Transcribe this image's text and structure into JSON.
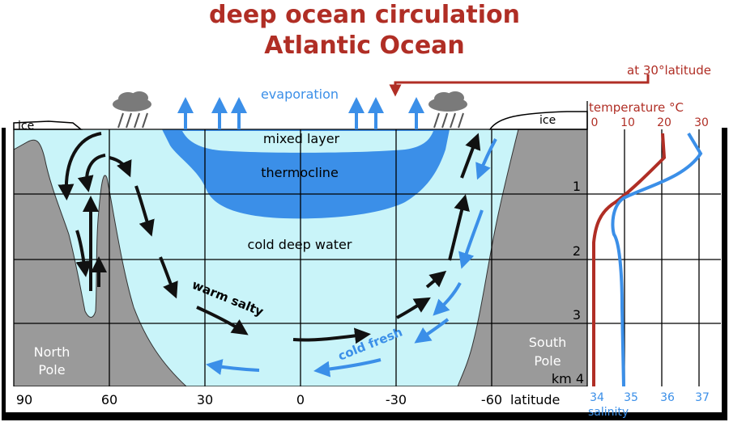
{
  "title": {
    "line1": "deep ocean circulation",
    "line2": "Atlantic Ocean"
  },
  "colors": {
    "title": "#b02e25",
    "ocean": "#c9f4f9",
    "thermocline": "#3b8fe8",
    "land": "#9a9a9a",
    "blue_text": "#3b8fe8",
    "temperature": "#b02e25",
    "salinity": "#3b8fe8",
    "arrow_dark": "#111111",
    "grid": "#000000",
    "cloud": "#7a7a7a"
  },
  "labels": {
    "evaporation": "evaporation",
    "mixed_layer": "mixed layer",
    "thermocline": "thermocline",
    "cold_deep_water": "cold deep water",
    "warm_salty": "warm salty",
    "cold_fresh": "cold fresh",
    "ice_left": "ice",
    "ice_right": "ice",
    "north_pole": [
      "North",
      "Pole"
    ],
    "south_pole": [
      "South",
      "Pole"
    ]
  },
  "latitude_axis": {
    "ticks": [
      "90",
      "60",
      "30",
      "0",
      "-30",
      "-60"
    ],
    "unit": "latitude"
  },
  "depth_axis": {
    "ticks": [
      "1",
      "2",
      "3"
    ],
    "last_tick": "km 4"
  },
  "profile_panel": {
    "header": "at 30°latitude",
    "temperature_label": "temperature °C",
    "temperature_ticks": [
      "0",
      "10",
      "20",
      "30"
    ],
    "salinity_ticks": [
      "34",
      "35",
      "36",
      "37"
    ],
    "salinity_label": "salinity"
  },
  "icons": [
    "cloud-icon",
    "rain-icon",
    "evaporation-arrow-icon",
    "circulation-arrow-icon"
  ]
}
